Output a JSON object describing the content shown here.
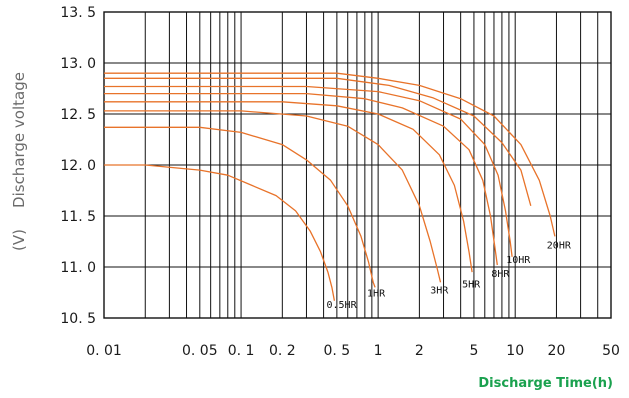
{
  "chart_data": {
    "type": "line",
    "title": "",
    "ylabel": "Discharge voltage",
    "ylabel_unit": "(V)",
    "xlabel": "Discharge Time(h)",
    "x_scale": "log",
    "xlim": [
      0.01,
      50
    ],
    "ylim": [
      10.5,
      13.5
    ],
    "grid": true,
    "line_color": "#e8732a",
    "label_color": "#1aa14e",
    "x_ticks": [
      {
        "value": 0.01,
        "label": "0. 01"
      },
      {
        "value": 0.05,
        "label": "0. 05"
      },
      {
        "value": 0.1,
        "label": "0. 1"
      },
      {
        "value": 0.2,
        "label": "0. 2"
      },
      {
        "value": 0.5,
        "label": "0. 5"
      },
      {
        "value": 1,
        "label": "1"
      },
      {
        "value": 2,
        "label": "2"
      },
      {
        "value": 5,
        "label": "5"
      },
      {
        "value": 10,
        "label": "10"
      },
      {
        "value": 20,
        "label": "20"
      },
      {
        "value": 50,
        "label": "50"
      }
    ],
    "y_ticks": [
      {
        "value": 10.5,
        "label": "10. 5"
      },
      {
        "value": 11.0,
        "label": "11. 0"
      },
      {
        "value": 11.5,
        "label": "11. 5"
      },
      {
        "value": 12.0,
        "label": "12. 0"
      },
      {
        "value": 12.5,
        "label": "12. 5"
      },
      {
        "value": 13.0,
        "label": "13. 0"
      },
      {
        "value": 13.5,
        "label": "13. 5"
      }
    ],
    "series": [
      {
        "name": "0.5HR",
        "points": [
          [
            0.01,
            12.0
          ],
          [
            0.02,
            12.0
          ],
          [
            0.05,
            11.95
          ],
          [
            0.08,
            11.9
          ],
          [
            0.12,
            11.8
          ],
          [
            0.18,
            11.7
          ],
          [
            0.25,
            11.55
          ],
          [
            0.32,
            11.35
          ],
          [
            0.38,
            11.15
          ],
          [
            0.43,
            10.95
          ],
          [
            0.46,
            10.8
          ],
          [
            0.48,
            10.67
          ]
        ]
      },
      {
        "name": "1HR",
        "points": [
          [
            0.01,
            12.37
          ],
          [
            0.05,
            12.37
          ],
          [
            0.1,
            12.32
          ],
          [
            0.2,
            12.2
          ],
          [
            0.3,
            12.05
          ],
          [
            0.45,
            11.85
          ],
          [
            0.6,
            11.6
          ],
          [
            0.75,
            11.3
          ],
          [
            0.85,
            11.05
          ],
          [
            0.92,
            10.85
          ],
          [
            0.95,
            10.8
          ]
        ]
      },
      {
        "name": "3HR",
        "points": [
          [
            0.01,
            12.53
          ],
          [
            0.1,
            12.53
          ],
          [
            0.3,
            12.48
          ],
          [
            0.6,
            12.38
          ],
          [
            1.0,
            12.2
          ],
          [
            1.5,
            11.95
          ],
          [
            2.0,
            11.6
          ],
          [
            2.4,
            11.25
          ],
          [
            2.7,
            10.98
          ],
          [
            2.85,
            10.85
          ]
        ]
      },
      {
        "name": "5HR",
        "points": [
          [
            0.01,
            12.62
          ],
          [
            0.2,
            12.62
          ],
          [
            0.5,
            12.58
          ],
          [
            1.0,
            12.5
          ],
          [
            1.8,
            12.35
          ],
          [
            2.8,
            12.1
          ],
          [
            3.6,
            11.8
          ],
          [
            4.2,
            11.45
          ],
          [
            4.6,
            11.15
          ],
          [
            4.85,
            10.95
          ]
        ]
      },
      {
        "name": "8HR",
        "points": [
          [
            0.01,
            12.7
          ],
          [
            0.3,
            12.7
          ],
          [
            0.8,
            12.65
          ],
          [
            1.5,
            12.56
          ],
          [
            3.0,
            12.38
          ],
          [
            4.6,
            12.15
          ],
          [
            5.8,
            11.85
          ],
          [
            6.6,
            11.5
          ],
          [
            7.1,
            11.2
          ],
          [
            7.4,
            11.02
          ]
        ]
      },
      {
        "name": "10HR",
        "points": [
          [
            0.01,
            12.77
          ],
          [
            0.3,
            12.77
          ],
          [
            1.0,
            12.72
          ],
          [
            2.0,
            12.63
          ],
          [
            4.0,
            12.45
          ],
          [
            6.0,
            12.2
          ],
          [
            7.5,
            11.9
          ],
          [
            8.5,
            11.55
          ],
          [
            9.2,
            11.25
          ],
          [
            9.5,
            11.1
          ]
        ]
      },
      {
        "name": "20HR_a",
        "points": [
          [
            0.01,
            12.85
          ],
          [
            0.5,
            12.85
          ],
          [
            1.2,
            12.78
          ],
          [
            2.5,
            12.66
          ],
          [
            5.0,
            12.48
          ],
          [
            8.0,
            12.22
          ],
          [
            11.0,
            11.95
          ],
          [
            13.0,
            11.6
          ]
        ]
      },
      {
        "name": "20HR",
        "points": [
          [
            0.01,
            12.9
          ],
          [
            0.5,
            12.9
          ],
          [
            1.0,
            12.85
          ],
          [
            2.0,
            12.78
          ],
          [
            4.0,
            12.65
          ],
          [
            7.0,
            12.48
          ],
          [
            11.0,
            12.2
          ],
          [
            15.0,
            11.85
          ],
          [
            18.0,
            11.5
          ],
          [
            19.5,
            11.3
          ]
        ]
      }
    ],
    "annotations": [
      {
        "text": "0.5HR",
        "x": 0.42,
        "y": 10.6
      },
      {
        "text": "1HR",
        "x": 0.83,
        "y": 10.71
      },
      {
        "text": "3HR",
        "x": 2.4,
        "y": 10.74
      },
      {
        "text": "5HR",
        "x": 4.1,
        "y": 10.8
      },
      {
        "text": "8HR",
        "x": 6.7,
        "y": 10.9
      },
      {
        "text": "10HR",
        "x": 8.6,
        "y": 11.04
      },
      {
        "text": "20HR",
        "x": 17.0,
        "y": 11.18
      }
    ]
  }
}
